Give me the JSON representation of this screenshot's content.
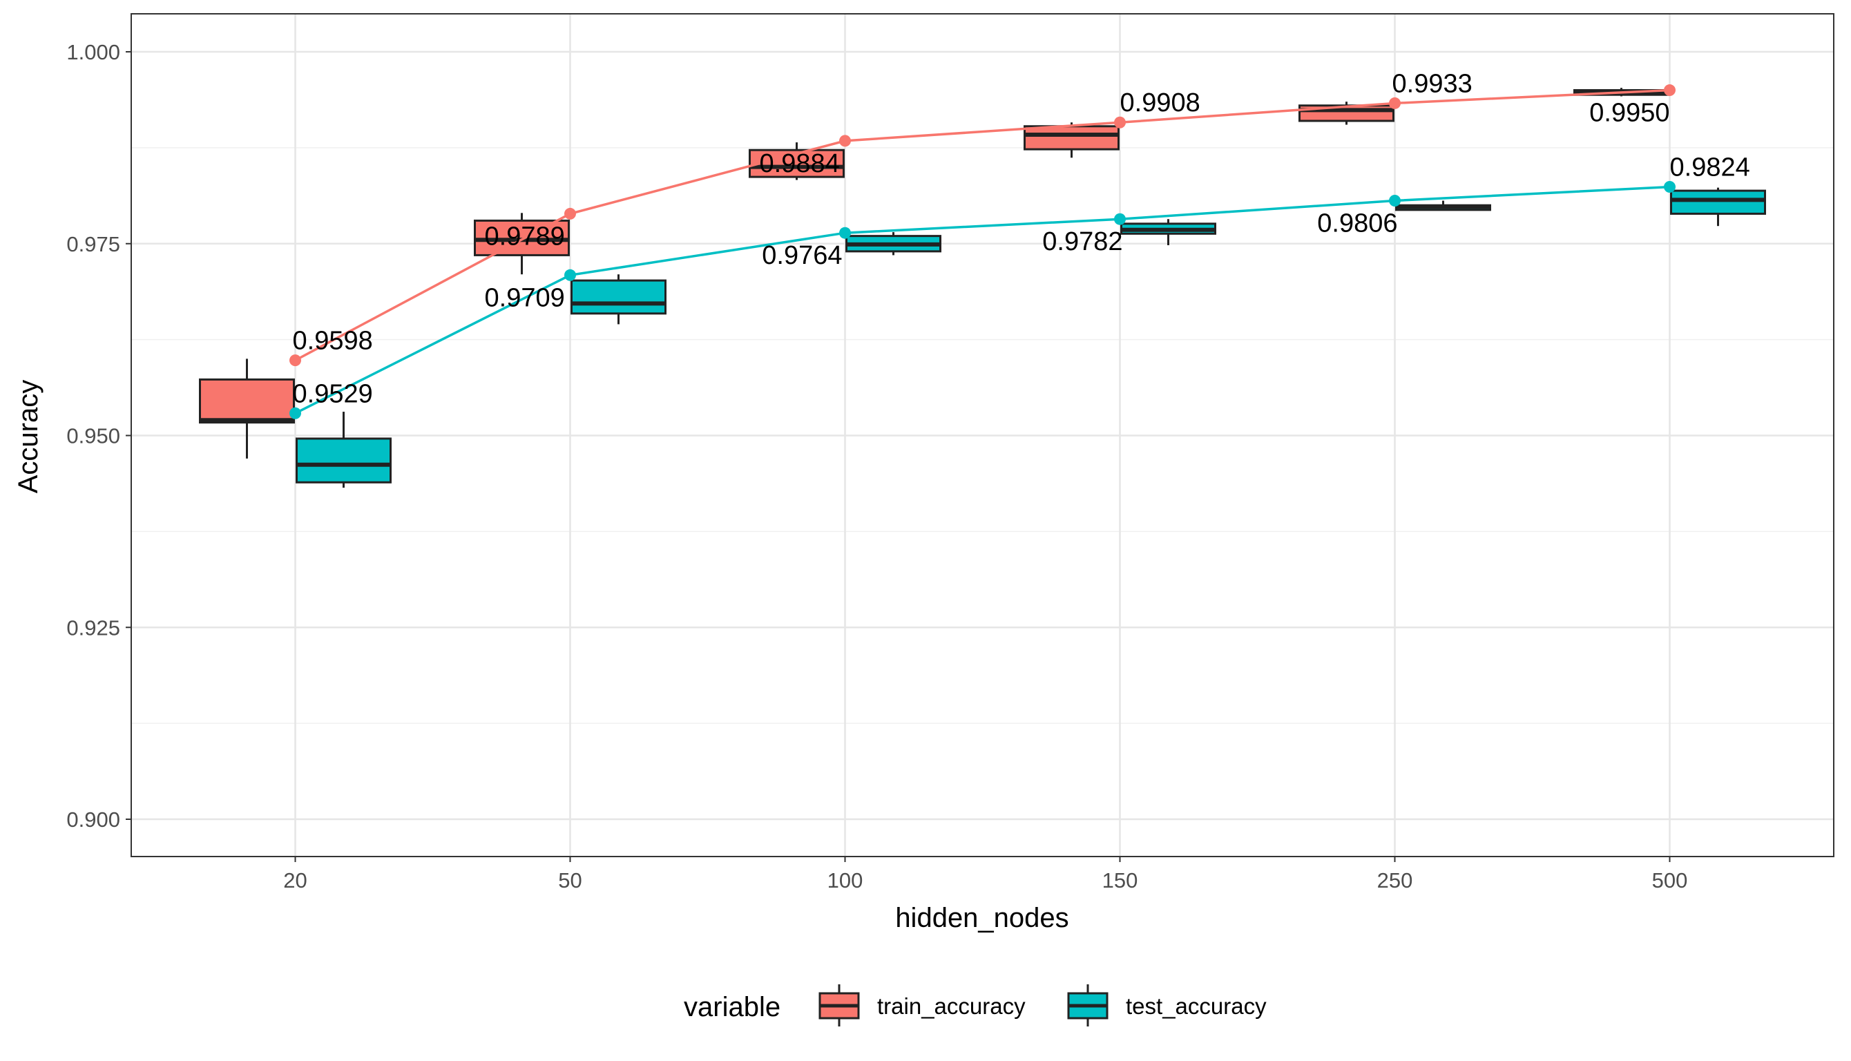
{
  "chart_data": {
    "type": "box+line",
    "xlabel": "hidden_nodes",
    "ylabel": "Accuracy",
    "categories": [
      "20",
      "50",
      "100",
      "150",
      "250",
      "500"
    ],
    "ylim": [
      0.895,
      1.005
    ],
    "y_ticks": [
      0.9,
      0.925,
      0.95,
      0.975,
      1.0
    ],
    "y_tick_labels": [
      "0.900",
      "0.925",
      "0.950",
      "0.975",
      "1.000"
    ],
    "grid": true,
    "legend": {
      "title": "variable",
      "position": "bottom",
      "entries": [
        {
          "name": "train_accuracy",
          "color": "#F8766D"
        },
        {
          "name": "test_accuracy",
          "color": "#00BFC4"
        }
      ]
    },
    "series": [
      {
        "name": "train_accuracy",
        "color": "#F8766D",
        "line_values": [
          0.9598,
          0.9789,
          0.9884,
          0.9908,
          0.9933,
          0.995
        ],
        "labels": [
          "0.9598",
          "0.9789",
          "0.9884",
          "0.9908",
          "0.9933",
          "0.9950"
        ],
        "boxes": [
          {
            "min": 0.947,
            "q1": 0.9517,
            "median": 0.952,
            "q3": 0.9573,
            "max": 0.96
          },
          {
            "min": 0.971,
            "q1": 0.9735,
            "median": 0.9755,
            "q3": 0.978,
            "max": 0.979
          },
          {
            "min": 0.9833,
            "q1": 0.9837,
            "median": 0.985,
            "q3": 0.9872,
            "max": 0.9882
          },
          {
            "min": 0.9862,
            "q1": 0.9873,
            "median": 0.9892,
            "q3": 0.9903,
            "max": 0.9908
          },
          {
            "min": 0.9905,
            "q1": 0.991,
            "median": 0.9924,
            "q3": 0.993,
            "max": 0.9935
          },
          {
            "min": 0.9942,
            "q1": 0.9944,
            "median": 0.9947,
            "q3": 0.995,
            "max": 0.9953
          }
        ]
      },
      {
        "name": "test_accuracy",
        "color": "#00BFC4",
        "line_values": [
          0.9529,
          0.9709,
          0.9764,
          0.9782,
          0.9806,
          0.9824
        ],
        "labels": [
          "0.9529",
          "0.9709",
          "0.9764",
          "0.9782",
          "0.9806",
          "0.9824"
        ],
        "boxes": [
          {
            "min": 0.9432,
            "q1": 0.9439,
            "median": 0.9462,
            "q3": 0.9496,
            "max": 0.9531
          },
          {
            "min": 0.9645,
            "q1": 0.9659,
            "median": 0.9672,
            "q3": 0.9702,
            "max": 0.971
          },
          {
            "min": 0.9735,
            "q1": 0.974,
            "median": 0.9749,
            "q3": 0.976,
            "max": 0.9765
          },
          {
            "min": 0.9748,
            "q1": 0.9763,
            "median": 0.9768,
            "q3": 0.9776,
            "max": 0.9782
          },
          {
            "min": 0.9793,
            "q1": 0.9794,
            "median": 0.9798,
            "q3": 0.98,
            "max": 0.9806
          },
          {
            "min": 0.9773,
            "q1": 0.9789,
            "median": 0.9807,
            "q3": 0.9819,
            "max": 0.9823
          }
        ]
      }
    ]
  }
}
